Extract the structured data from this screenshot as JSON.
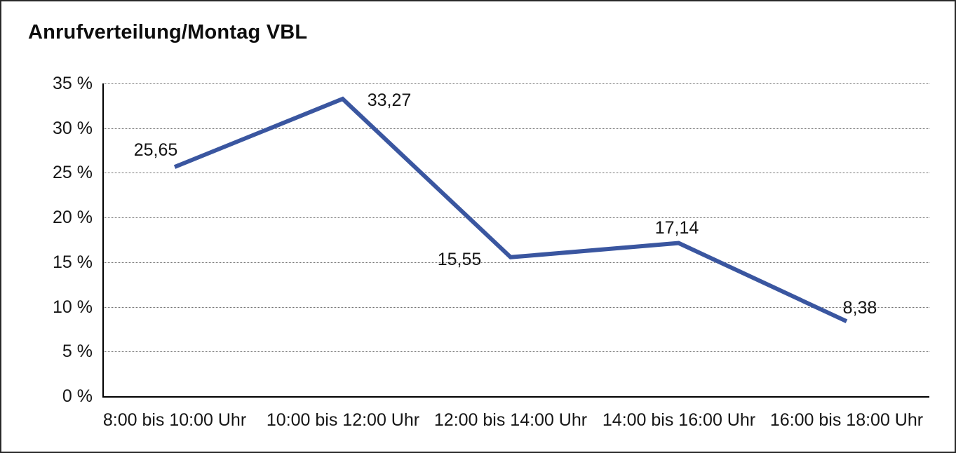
{
  "chart": {
    "title": "Anrufverteilung/Montag VBL"
  },
  "chart_data": {
    "type": "line",
    "title": "Anrufverteilung/Montag VBL",
    "categories": [
      "8:00 bis 10:00 Uhr",
      "10:00 bis 12:00 Uhr",
      "12:00 bis 14:00 Uhr",
      "14:00 bis 16:00 Uhr",
      "16:00 bis 18:00 Uhr"
    ],
    "values": [
      25.65,
      33.27,
      15.55,
      17.14,
      8.38
    ],
    "value_labels": [
      "25,65",
      "33,27",
      "15,55",
      "17,14",
      "8,38"
    ],
    "y_tick_labels": [
      "35 %",
      "30 %",
      "25 %",
      "20 %",
      "15 %",
      "10 %",
      "5 %",
      "0 %"
    ],
    "y_tick_values": [
      35,
      30,
      25,
      20,
      15,
      10,
      5,
      0
    ],
    "ylim": [
      0,
      35
    ],
    "y_step": 5,
    "xlabel": "",
    "ylabel": "",
    "grid": "horizontal-dotted",
    "legend": "none",
    "line_color": "#3A56A0",
    "text_color": "#141414"
  }
}
